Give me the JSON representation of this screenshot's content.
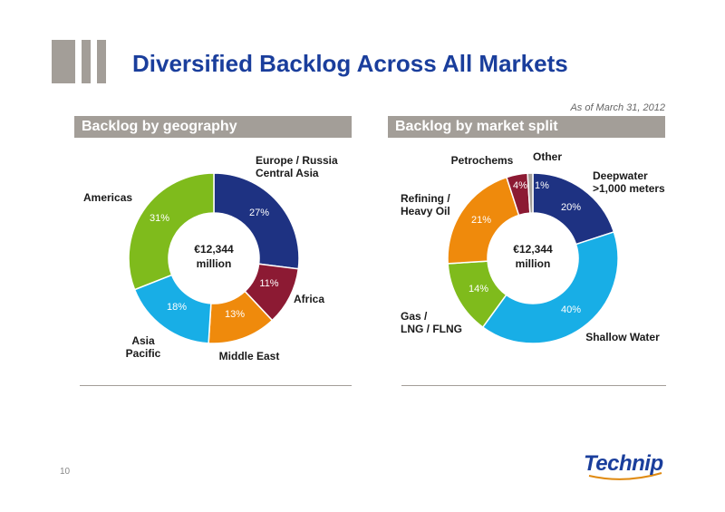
{
  "page": {
    "title": "Diversified Backlog Across All Markets",
    "as_of": "As of March 31, 2012",
    "page_number": "10",
    "logo_text": "Technip"
  },
  "colors": {
    "navy": "#1e3282",
    "maroon": "#8c1a33",
    "orange": "#ef8a0c",
    "cyan": "#18aee6",
    "green": "#7fbb1c",
    "gray": "#a39e98",
    "title_blue": "#1a3e9c"
  },
  "chart_data": [
    {
      "type": "pie",
      "title": "Backlog by geography",
      "center_label": [
        "€12,344",
        "million"
      ],
      "slices": [
        {
          "label": "Europe / Russia Central Asia",
          "label_lines": [
            "Europe / Russia",
            "Central Asia"
          ],
          "value": 27,
          "display": "27%",
          "color": "#1e3282"
        },
        {
          "label": "Africa",
          "label_lines": [
            "Africa"
          ],
          "value": 11,
          "display": "11%",
          "color": "#8c1a33"
        },
        {
          "label": "Middle East",
          "label_lines": [
            "Middle East"
          ],
          "value": 13,
          "display": "13%",
          "color": "#ef8a0c"
        },
        {
          "label": "Asia Pacific",
          "label_lines": [
            "Asia",
            "Pacific"
          ],
          "value": 18,
          "display": "18%",
          "color": "#18aee6"
        },
        {
          "label": "Americas",
          "label_lines": [
            "Americas"
          ],
          "value": 31,
          "display": "31%",
          "color": "#7fbb1c"
        }
      ]
    },
    {
      "type": "pie",
      "title": "Backlog by market split",
      "center_label": [
        "€12,344",
        "million"
      ],
      "slices": [
        {
          "label": "Deepwater >1,000 meters",
          "label_lines": [
            "Deepwater",
            ">1,000 meters"
          ],
          "value": 20,
          "display": "20%",
          "color": "#1e3282"
        },
        {
          "label": "Shallow Water",
          "label_lines": [
            "Shallow Water"
          ],
          "value": 40,
          "display": "40%",
          "color": "#18aee6"
        },
        {
          "label": "Gas / LNG / FLNG",
          "label_lines": [
            "Gas /",
            "LNG / FLNG"
          ],
          "value": 14,
          "display": "14%",
          "color": "#7fbb1c"
        },
        {
          "label": "Refining / Heavy Oil",
          "label_lines": [
            "Refining /",
            "Heavy Oil"
          ],
          "value": 21,
          "display": "21%",
          "color": "#ef8a0c"
        },
        {
          "label": "Petrochems",
          "label_lines": [
            "Petrochems"
          ],
          "value": 4,
          "display": "4%",
          "color": "#8c1a33"
        },
        {
          "label": "Other",
          "label_lines": [
            "Other"
          ],
          "value": 1,
          "display": "1%",
          "color": "#a39e98"
        }
      ]
    }
  ]
}
